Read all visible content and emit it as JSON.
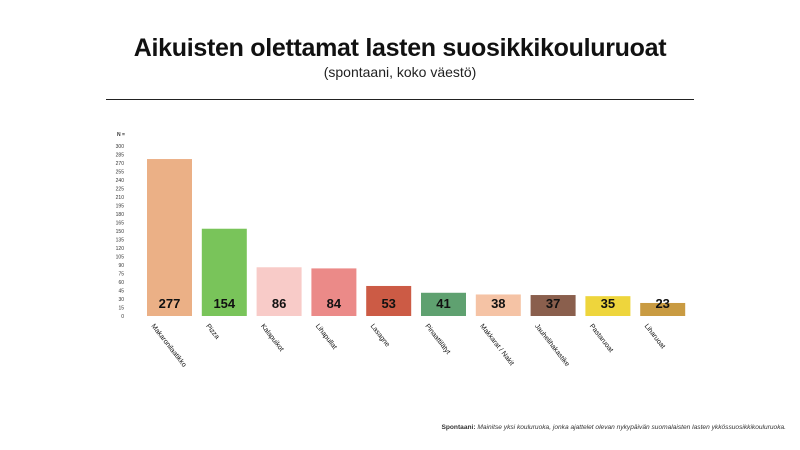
{
  "header": {
    "title": "Aikuisten olettamat lasten suosikkikouluruoat",
    "subtitle": "(spontaani, koko väestö)"
  },
  "footnote": {
    "label": "Spontaani:",
    "text": "Mainitse yksi kouluruoka, jonka ajattelet olevan nykypäivän suomalaisten lasten ykkössuosikkikouluruoka."
  },
  "chart_data": {
    "type": "bar",
    "title": "Aikuisten olettamat lasten suosikkikouluruoat",
    "subtitle": "(spontaani, koko väestö)",
    "ylabel": "N =",
    "ylim": [
      0,
      300
    ],
    "yticks": [
      0,
      15,
      30,
      45,
      60,
      75,
      90,
      105,
      120,
      135,
      150,
      165,
      180,
      195,
      210,
      225,
      240,
      255,
      270,
      285,
      300
    ],
    "grid": false,
    "categories": [
      "Makaronilaatikko",
      "Pizza",
      "Kalapuikot",
      "Lihapullat",
      "Lasagne",
      "Pinaattilätyt",
      "Makkarat / Nakit",
      "Jauhelihakastike",
      "Pastaruoat",
      "Liharuoat"
    ],
    "values": [
      277,
      154,
      86,
      84,
      53,
      41,
      38,
      37,
      35,
      23
    ],
    "colors": [
      "#EBB086",
      "#79C45A",
      "#F8CBC8",
      "#EB8A88",
      "#CC5B45",
      "#5FA170",
      "#F5C3A5",
      "#8A5F4D",
      "#EED53C",
      "#C99B42"
    ]
  }
}
